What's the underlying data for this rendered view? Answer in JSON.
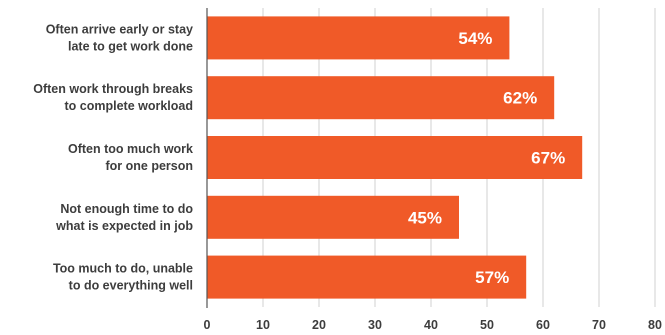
{
  "colors": {
    "bar": "#f05a28",
    "grid": "#d0d0d0",
    "axis": "#555555",
    "text": "#3d3d3d",
    "label": "#ffffff"
  },
  "chart_data": {
    "type": "bar",
    "orientation": "horizontal",
    "title": "",
    "xlabel": "",
    "ylabel": "",
    "categories": [
      [
        "Often arrive early or stay",
        "late to get work done"
      ],
      [
        "Often work through breaks",
        "to complete workload"
      ],
      [
        "Often too much work",
        "for one person"
      ],
      [
        "Not enough time to do",
        "what is expected in job"
      ],
      [
        "Too much to do, unable",
        "to do everything well"
      ]
    ],
    "values": [
      54,
      62,
      67,
      45,
      57
    ],
    "data_labels": [
      "54%",
      "62%",
      "67%",
      "45%",
      "57%"
    ],
    "xlim": [
      0,
      80
    ],
    "xticks": [
      0,
      10,
      20,
      30,
      40,
      50,
      60,
      70,
      80
    ],
    "grid": true,
    "legend": "none"
  }
}
